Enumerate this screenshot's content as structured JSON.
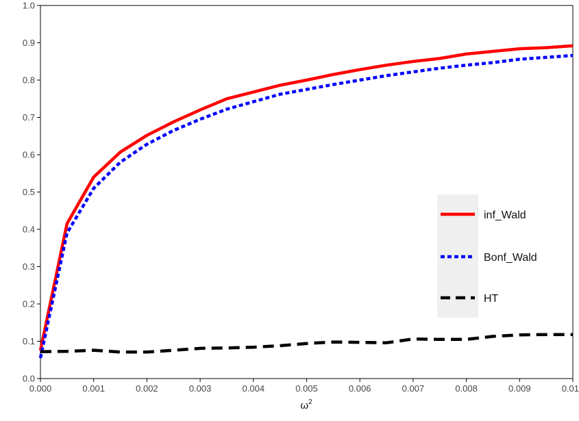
{
  "chart_data": {
    "type": "line",
    "title": "",
    "xlabel": "ω",
    "xlabel_superscript": "2",
    "ylabel": "",
    "xlim": [
      0,
      0.01
    ],
    "ylim": [
      0,
      1.0
    ],
    "xticks": [
      0,
      0.001,
      0.002,
      0.003,
      0.004,
      0.005,
      0.006,
      0.007,
      0.008,
      0.009,
      0.01
    ],
    "xtick_labels": [
      "0.000",
      "0.001",
      "0.002",
      "0.003",
      "0.004",
      "0.005",
      "0.006",
      "0.007",
      "0.008",
      "0.009",
      "0.01"
    ],
    "yticks": [
      0,
      0.1,
      0.2,
      0.3,
      0.4,
      0.5,
      0.6,
      0.7,
      0.8,
      0.9,
      1.0
    ],
    "ytick_labels": [
      "0.0",
      "0.1",
      "0.2",
      "0.3",
      "0.4",
      "0.5",
      "0.6",
      "0.7",
      "0.8",
      "0.9",
      "1.0"
    ],
    "grid": false,
    "legend_position": "right",
    "x": [
      0,
      0.0005,
      0.001,
      0.0015,
      0.002,
      0.0025,
      0.003,
      0.0035,
      0.004,
      0.0045,
      0.005,
      0.0055,
      0.006,
      0.0065,
      0.007,
      0.0075,
      0.008,
      0.0085,
      0.009,
      0.0095,
      0.01
    ],
    "series": [
      {
        "name": "inf_Wald",
        "color": "#ff0000",
        "style": "solid",
        "values": [
          0.075,
          0.415,
          0.54,
          0.607,
          0.652,
          0.688,
          0.72,
          0.75,
          0.768,
          0.786,
          0.8,
          0.815,
          0.828,
          0.84,
          0.85,
          0.858,
          0.87,
          0.877,
          0.884,
          0.887,
          0.892
        ]
      },
      {
        "name": "Bonf_Wald",
        "color": "#0000ff",
        "style": "dotted",
        "values": [
          0.055,
          0.39,
          0.51,
          0.58,
          0.628,
          0.665,
          0.695,
          0.722,
          0.742,
          0.762,
          0.775,
          0.788,
          0.8,
          0.812,
          0.822,
          0.832,
          0.84,
          0.847,
          0.856,
          0.861,
          0.866
        ]
      },
      {
        "name": "HT",
        "color": "#000000",
        "style": "dashed",
        "values": [
          0.072,
          0.073,
          0.076,
          0.071,
          0.071,
          0.076,
          0.081,
          0.082,
          0.084,
          0.088,
          0.094,
          0.098,
          0.097,
          0.096,
          0.106,
          0.105,
          0.105,
          0.113,
          0.117,
          0.118,
          0.118
        ]
      }
    ]
  }
}
